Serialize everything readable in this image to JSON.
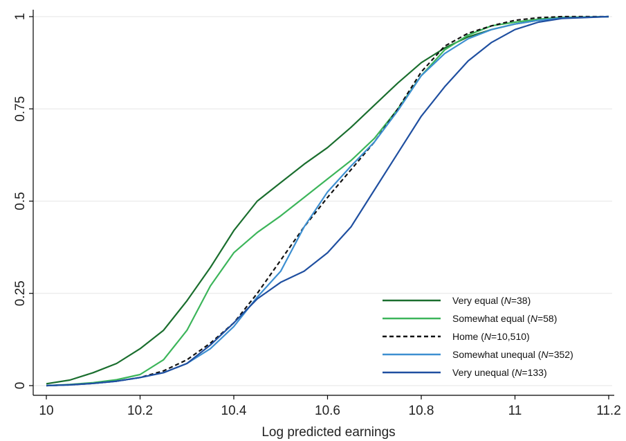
{
  "chart_data": {
    "type": "line",
    "title": "",
    "xlabel": "Log predicted earnings",
    "ylabel": "",
    "xlim": [
      10,
      11.2
    ],
    "ylim": [
      0,
      1
    ],
    "x_ticks": [
      "10",
      "10.2",
      "10.4",
      "10.6",
      "10.8",
      "11",
      "11.2"
    ],
    "y_ticks": [
      "0",
      "0.25",
      "0.5",
      "0.75",
      "1"
    ],
    "grid": "horizontal",
    "legend_position": "bottom-right",
    "series": [
      {
        "name": "Very equal (N=38)",
        "name_parts": [
          "Very equal (",
          "N",
          "=38)"
        ],
        "color": "#1a6e2e",
        "dash": "solid",
        "points": [
          [
            10.0,
            0.005
          ],
          [
            10.05,
            0.015
          ],
          [
            10.1,
            0.035
          ],
          [
            10.15,
            0.06
          ],
          [
            10.2,
            0.1
          ],
          [
            10.25,
            0.15
          ],
          [
            10.3,
            0.23
          ],
          [
            10.35,
            0.32
          ],
          [
            10.4,
            0.42
          ],
          [
            10.45,
            0.5
          ],
          [
            10.5,
            0.55
          ],
          [
            10.55,
            0.6
          ],
          [
            10.6,
            0.645
          ],
          [
            10.65,
            0.7
          ],
          [
            10.7,
            0.76
          ],
          [
            10.75,
            0.82
          ],
          [
            10.8,
            0.875
          ],
          [
            10.85,
            0.915
          ],
          [
            10.9,
            0.945
          ],
          [
            10.95,
            0.965
          ],
          [
            11.0,
            0.98
          ],
          [
            11.05,
            0.99
          ],
          [
            11.1,
            0.997
          ],
          [
            11.2,
            1.0
          ]
        ]
      },
      {
        "name": "Somewhat equal (N=58)",
        "name_parts": [
          "Somewhat equal (",
          "N",
          "=58)"
        ],
        "color": "#3cb55a",
        "dash": "solid",
        "points": [
          [
            10.0,
            0.0
          ],
          [
            10.05,
            0.003
          ],
          [
            10.1,
            0.008
          ],
          [
            10.15,
            0.016
          ],
          [
            10.2,
            0.03
          ],
          [
            10.25,
            0.07
          ],
          [
            10.3,
            0.15
          ],
          [
            10.35,
            0.27
          ],
          [
            10.4,
            0.36
          ],
          [
            10.45,
            0.415
          ],
          [
            10.5,
            0.46
          ],
          [
            10.55,
            0.51
          ],
          [
            10.6,
            0.56
          ],
          [
            10.65,
            0.61
          ],
          [
            10.7,
            0.67
          ],
          [
            10.75,
            0.75
          ],
          [
            10.8,
            0.84
          ],
          [
            10.85,
            0.91
          ],
          [
            10.9,
            0.95
          ],
          [
            10.95,
            0.975
          ],
          [
            11.0,
            0.985
          ],
          [
            11.05,
            0.993
          ],
          [
            11.1,
            0.998
          ],
          [
            11.2,
            1.0
          ]
        ]
      },
      {
        "name": "Home (N=10,510)",
        "name_parts": [
          "Home (",
          "N",
          "=10,510)"
        ],
        "color": "#111111",
        "dash": "dashed",
        "points": [
          [
            10.0,
            0.0
          ],
          [
            10.05,
            0.002
          ],
          [
            10.1,
            0.006
          ],
          [
            10.15,
            0.012
          ],
          [
            10.2,
            0.022
          ],
          [
            10.25,
            0.04
          ],
          [
            10.3,
            0.07
          ],
          [
            10.35,
            0.115
          ],
          [
            10.4,
            0.17
          ],
          [
            10.45,
            0.25
          ],
          [
            10.5,
            0.34
          ],
          [
            10.55,
            0.43
          ],
          [
            10.6,
            0.51
          ],
          [
            10.65,
            0.585
          ],
          [
            10.7,
            0.66
          ],
          [
            10.75,
            0.75
          ],
          [
            10.8,
            0.85
          ],
          [
            10.85,
            0.92
          ],
          [
            10.9,
            0.955
          ],
          [
            10.95,
            0.975
          ],
          [
            11.0,
            0.99
          ],
          [
            11.05,
            0.997
          ],
          [
            11.1,
            1.0
          ],
          [
            11.2,
            1.0
          ]
        ]
      },
      {
        "name": "Somewhat unequal (N=352)",
        "name_parts": [
          "Somewhat unequal (",
          "N",
          "=352)"
        ],
        "color": "#3d8fd1",
        "dash": "solid",
        "points": [
          [
            10.0,
            0.0
          ],
          [
            10.05,
            0.002
          ],
          [
            10.1,
            0.006
          ],
          [
            10.15,
            0.012
          ],
          [
            10.2,
            0.022
          ],
          [
            10.25,
            0.035
          ],
          [
            10.3,
            0.06
          ],
          [
            10.35,
            0.1
          ],
          [
            10.4,
            0.16
          ],
          [
            10.45,
            0.24
          ],
          [
            10.5,
            0.31
          ],
          [
            10.55,
            0.43
          ],
          [
            10.6,
            0.525
          ],
          [
            10.65,
            0.595
          ],
          [
            10.7,
            0.66
          ],
          [
            10.75,
            0.745
          ],
          [
            10.8,
            0.84
          ],
          [
            10.85,
            0.9
          ],
          [
            10.9,
            0.94
          ],
          [
            10.95,
            0.965
          ],
          [
            11.0,
            0.98
          ],
          [
            11.05,
            0.99
          ],
          [
            11.1,
            0.996
          ],
          [
            11.2,
            1.0
          ]
        ]
      },
      {
        "name": "Very unequal (N=133)",
        "name_parts": [
          "Very unequal (",
          "N",
          "=133)"
        ],
        "color": "#1f4fa0",
        "dash": "solid",
        "points": [
          [
            10.0,
            0.0
          ],
          [
            10.05,
            0.002
          ],
          [
            10.1,
            0.006
          ],
          [
            10.15,
            0.012
          ],
          [
            10.2,
            0.022
          ],
          [
            10.25,
            0.035
          ],
          [
            10.3,
            0.06
          ],
          [
            10.35,
            0.11
          ],
          [
            10.4,
            0.17
          ],
          [
            10.45,
            0.235
          ],
          [
            10.5,
            0.28
          ],
          [
            10.55,
            0.31
          ],
          [
            10.6,
            0.36
          ],
          [
            10.65,
            0.43
          ],
          [
            10.7,
            0.53
          ],
          [
            10.75,
            0.63
          ],
          [
            10.8,
            0.73
          ],
          [
            10.85,
            0.81
          ],
          [
            10.9,
            0.88
          ],
          [
            10.95,
            0.93
          ],
          [
            11.0,
            0.965
          ],
          [
            11.05,
            0.985
          ],
          [
            11.1,
            0.995
          ],
          [
            11.2,
            1.0
          ]
        ]
      }
    ]
  }
}
